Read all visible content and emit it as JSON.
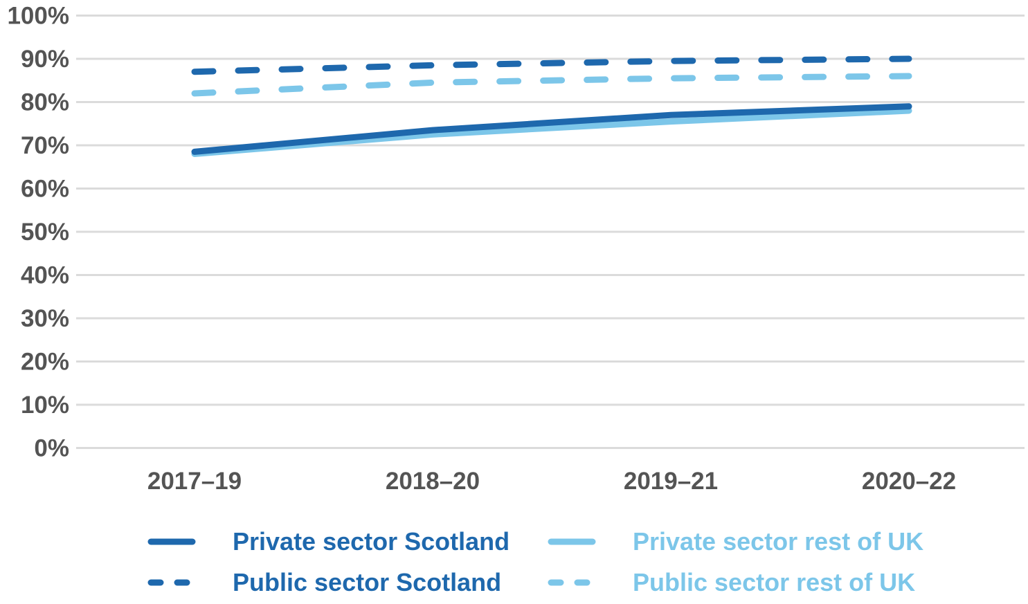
{
  "page": {
    "background": "#FFFFFF"
  },
  "colors": {
    "dark_blue": "#1E68AD",
    "light_blue": "#7CC6E9",
    "axis_text": "#545454",
    "gridline": "#DBDBDB"
  },
  "chart_data": {
    "type": "line",
    "categories": [
      "2017–19",
      "2018–20",
      "2019–21",
      "2020–22"
    ],
    "series": [
      {
        "name": "Private sector Scotland",
        "style": "solid",
        "color_key": "dark_blue",
        "values": [
          68.5,
          73.5,
          77.0,
          79.0
        ]
      },
      {
        "name": "Private sector rest of UK",
        "style": "solid",
        "color_key": "light_blue",
        "values": [
          68.0,
          72.5,
          75.5,
          78.0
        ]
      },
      {
        "name": "Public sector Scotland",
        "style": "dashed",
        "color_key": "dark_blue",
        "values": [
          87.0,
          88.5,
          89.5,
          90.0
        ]
      },
      {
        "name": "Public sector rest of UK",
        "style": "dashed",
        "color_key": "light_blue",
        "values": [
          82.0,
          84.5,
          85.5,
          86.0
        ]
      }
    ],
    "y_tick_labels": [
      "0%",
      "10%",
      "20%",
      "30%",
      "40%",
      "50%",
      "60%",
      "70%",
      "80%",
      "90%",
      "100%"
    ],
    "ylim": [
      0,
      100
    ],
    "y_tick_step": 10,
    "grid": true,
    "legend_position": "bottom"
  }
}
